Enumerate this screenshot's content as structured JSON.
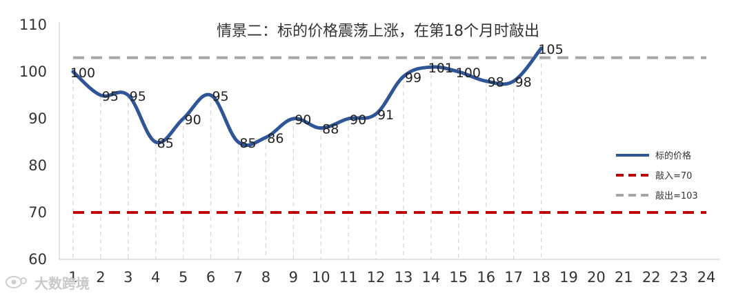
{
  "chart_data": {
    "type": "line",
    "title": "情景二：标的价格震荡上涨，在第18个月时敲出",
    "x": [
      1,
      2,
      3,
      4,
      5,
      6,
      7,
      8,
      9,
      10,
      11,
      12,
      13,
      14,
      15,
      16,
      17,
      18,
      19,
      20,
      21,
      22,
      23,
      24
    ],
    "ylim": [
      60,
      110
    ],
    "yticks": [
      60,
      70,
      80,
      90,
      100,
      110
    ],
    "xlabel": "",
    "ylabel": "",
    "grid": "vertical dashed",
    "legend_position": "right",
    "series": [
      {
        "name": "标的价格",
        "style": "solid",
        "color": "#2f5597",
        "x": [
          1,
          2,
          3,
          4,
          5,
          6,
          7,
          8,
          9,
          10,
          11,
          12,
          13,
          14,
          15,
          16,
          17,
          18
        ],
        "values": [
          100,
          95,
          95,
          85,
          90,
          95,
          85,
          86,
          90,
          88,
          90,
          91,
          99,
          101,
          100,
          98,
          98,
          105
        ],
        "labels": [
          "100",
          "95",
          "95",
          "85",
          "90",
          "95",
          "85",
          "86",
          "90",
          "88",
          "90",
          "91",
          "99",
          "101",
          "100",
          "98",
          "98",
          "105"
        ]
      },
      {
        "name": "敲入=70",
        "style": "dashed",
        "color": "#c00000",
        "level": 70
      },
      {
        "name": "敲出=103",
        "style": "dashed",
        "color": "#a6a6a6",
        "level": 103
      }
    ]
  },
  "watermark": {
    "icon": "eye-logo-icon",
    "text": "大数跨境"
  }
}
